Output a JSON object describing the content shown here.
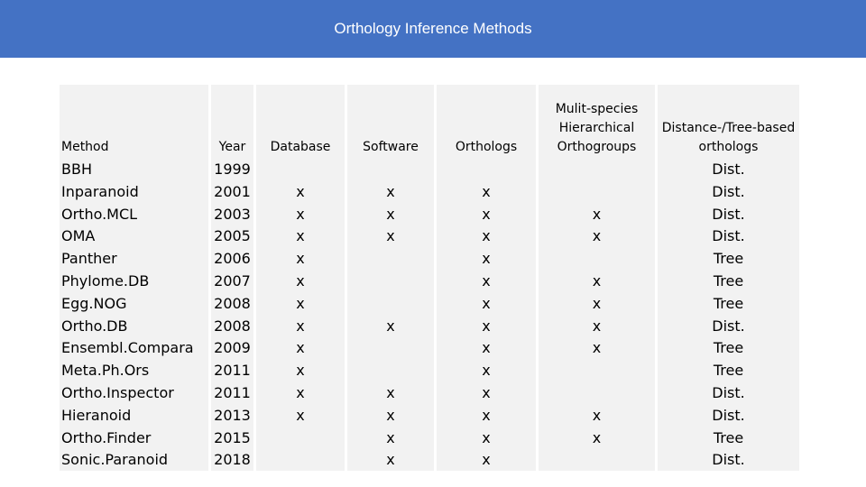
{
  "title": "Orthology Inference Methods",
  "colors": {
    "header_bar": "#4472c4",
    "table_bg": "#f2f2f2"
  },
  "table": {
    "columns": [
      {
        "key": "method",
        "header": "Method"
      },
      {
        "key": "year",
        "header": "Year"
      },
      {
        "key": "database",
        "header": "Database"
      },
      {
        "key": "software",
        "header": "Software"
      },
      {
        "key": "orthologs",
        "header": "Orthologs"
      },
      {
        "key": "multi",
        "header": "Mulit-species Hierarchical Orthogroups"
      },
      {
        "key": "dist",
        "header": "Distance-/Tree-based orthologs"
      }
    ],
    "rows": [
      {
        "method": "BBH",
        "year": "1999",
        "database": "",
        "software": "",
        "orthologs": "",
        "multi": "",
        "dist": "Dist."
      },
      {
        "method": "Inparanoid",
        "year": "2001",
        "database": "x",
        "software": "x",
        "orthologs": "x",
        "multi": "",
        "dist": "Dist."
      },
      {
        "method": "Ortho.MCL",
        "year": "2003",
        "database": "x",
        "software": "x",
        "orthologs": "x",
        "multi": "x",
        "dist": "Dist."
      },
      {
        "method": "OMA",
        "year": "2005",
        "database": "x",
        "software": "x",
        "orthologs": "x",
        "multi": "x",
        "dist": "Dist."
      },
      {
        "method": "Panther",
        "year": "2006",
        "database": "x",
        "software": "",
        "orthologs": "x",
        "multi": "",
        "dist": "Tree"
      },
      {
        "method": "Phylome.DB",
        "year": "2007",
        "database": "x",
        "software": "",
        "orthologs": "x",
        "multi": "x",
        "dist": "Tree"
      },
      {
        "method": "Egg.NOG",
        "year": "2008",
        "database": "x",
        "software": "",
        "orthologs": "x",
        "multi": "x",
        "dist": "Tree"
      },
      {
        "method": "Ortho.DB",
        "year": "2008",
        "database": "x",
        "software": "x",
        "orthologs": "x",
        "multi": "x",
        "dist": "Dist."
      },
      {
        "method": "Ensembl.Compara",
        "year": "2009",
        "database": "x",
        "software": "",
        "orthologs": "x",
        "multi": "x",
        "dist": "Tree"
      },
      {
        "method": "Meta.Ph.Ors",
        "year": "2011",
        "database": "x",
        "software": "",
        "orthologs": "x",
        "multi": "",
        "dist": "Tree"
      },
      {
        "method": "Ortho.Inspector",
        "year": "2011",
        "database": "x",
        "software": "x",
        "orthologs": "x",
        "multi": "",
        "dist": "Dist."
      },
      {
        "method": "Hieranoid",
        "year": "2013",
        "database": "x",
        "software": "x",
        "orthologs": "x",
        "multi": "x",
        "dist": "Dist."
      },
      {
        "method": "Ortho.Finder",
        "year": "2015",
        "database": "",
        "software": "x",
        "orthologs": "x",
        "multi": "x",
        "dist": "Tree"
      },
      {
        "method": "Sonic.Paranoid",
        "year": "2018",
        "database": "",
        "software": "x",
        "orthologs": "x",
        "multi": "",
        "dist": "Dist."
      }
    ]
  }
}
